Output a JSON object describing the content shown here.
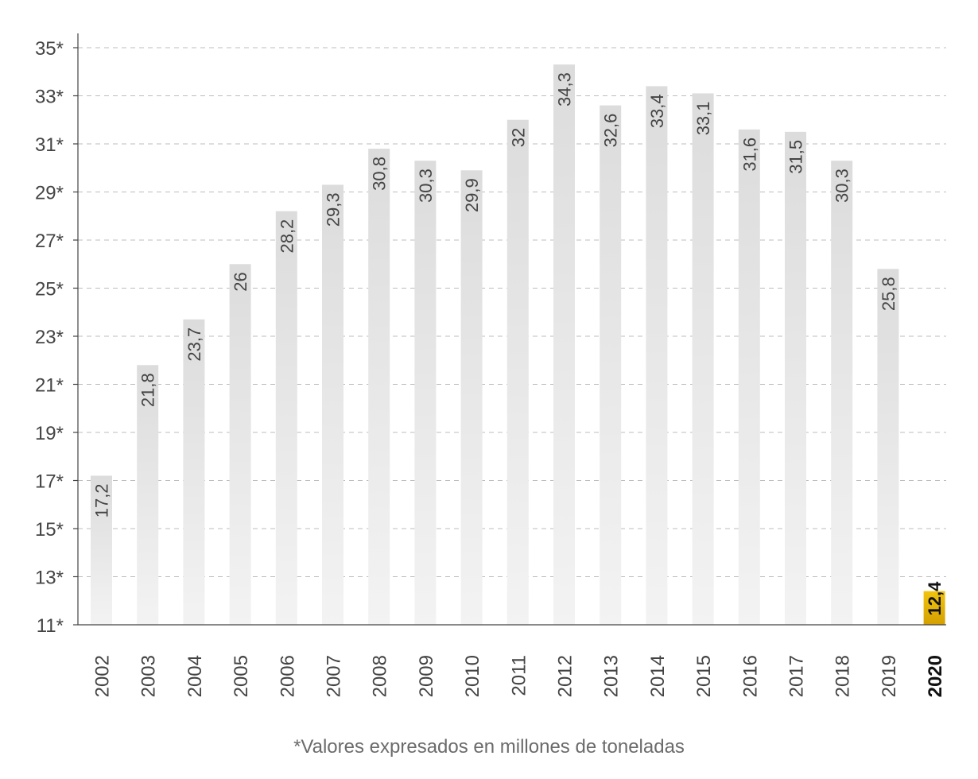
{
  "chart_data": {
    "type": "bar",
    "categories": [
      "2002",
      "2003",
      "2004",
      "2005",
      "2006",
      "2007",
      "2008",
      "2009",
      "2010",
      "2011",
      "2012",
      "2013",
      "2014",
      "2015",
      "2016",
      "2017",
      "2018",
      "2019",
      "2020"
    ],
    "values": [
      17.2,
      21.8,
      23.7,
      26,
      28.2,
      29.3,
      30.8,
      30.3,
      29.9,
      32,
      34.3,
      32.6,
      33.4,
      33.1,
      31.6,
      31.5,
      30.3,
      25.8,
      12.4
    ],
    "value_labels": [
      "17,2",
      "21,8",
      "23,7",
      "26",
      "28,2",
      "29,3",
      "30,8",
      "30,3",
      "29,9",
      "32",
      "34,3",
      "32,6",
      "33,4",
      "33,1",
      "31,6",
      "31,5",
      "30,3",
      "25,8",
      "12,4"
    ],
    "highlight_category": "2020",
    "ylim": [
      11,
      35
    ],
    "yticks": [
      11,
      13,
      15,
      17,
      19,
      21,
      23,
      25,
      27,
      29,
      31,
      33,
      35
    ],
    "ytick_labels": [
      "11*",
      "13*",
      "15*",
      "17*",
      "19*",
      "21*",
      "23*",
      "25*",
      "27*",
      "29*",
      "31*",
      "33*",
      "35*"
    ],
    "grid": "horizontal-dashed",
    "colors": {
      "bar_top": "#dcdcdc",
      "bar_bottom": "#f3f3f3",
      "highlight_top": "#f1c40f",
      "highlight_bottom": "#d4a000",
      "grid": "#bdbdbd",
      "axis": "#444444"
    },
    "footnote": "*Valores expresados en millones de toneladas"
  }
}
